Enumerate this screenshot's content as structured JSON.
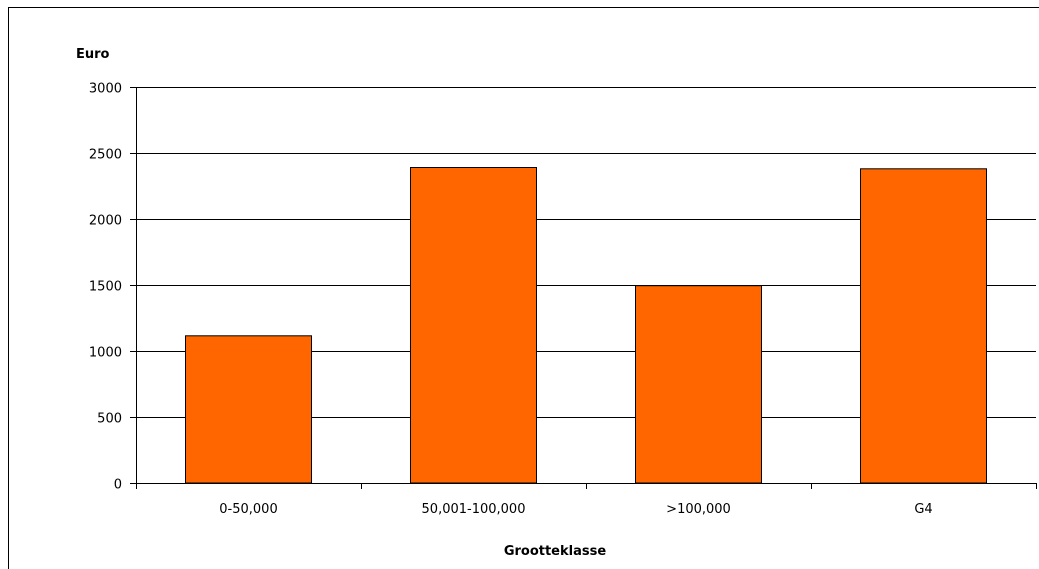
{
  "chart_data": {
    "type": "bar",
    "title": "",
    "ylabel": "Euro",
    "xlabel": "Grootteklasse",
    "categories": [
      "0-50,000",
      "50,001-100,000",
      ">100,000",
      "G4"
    ],
    "values": [
      1115,
      2390,
      1495,
      2380
    ],
    "ylim": [
      0,
      3000
    ],
    "yticks": [
      0,
      500,
      1000,
      1500,
      2000,
      2500,
      3000
    ],
    "ytick_labels": [
      "0",
      "500",
      "1000",
      "1500",
      "2000",
      "2500",
      "3000"
    ],
    "grid": true,
    "legend": "none",
    "bar_color": "#ff6600",
    "bar_edge_color": "#000000"
  }
}
